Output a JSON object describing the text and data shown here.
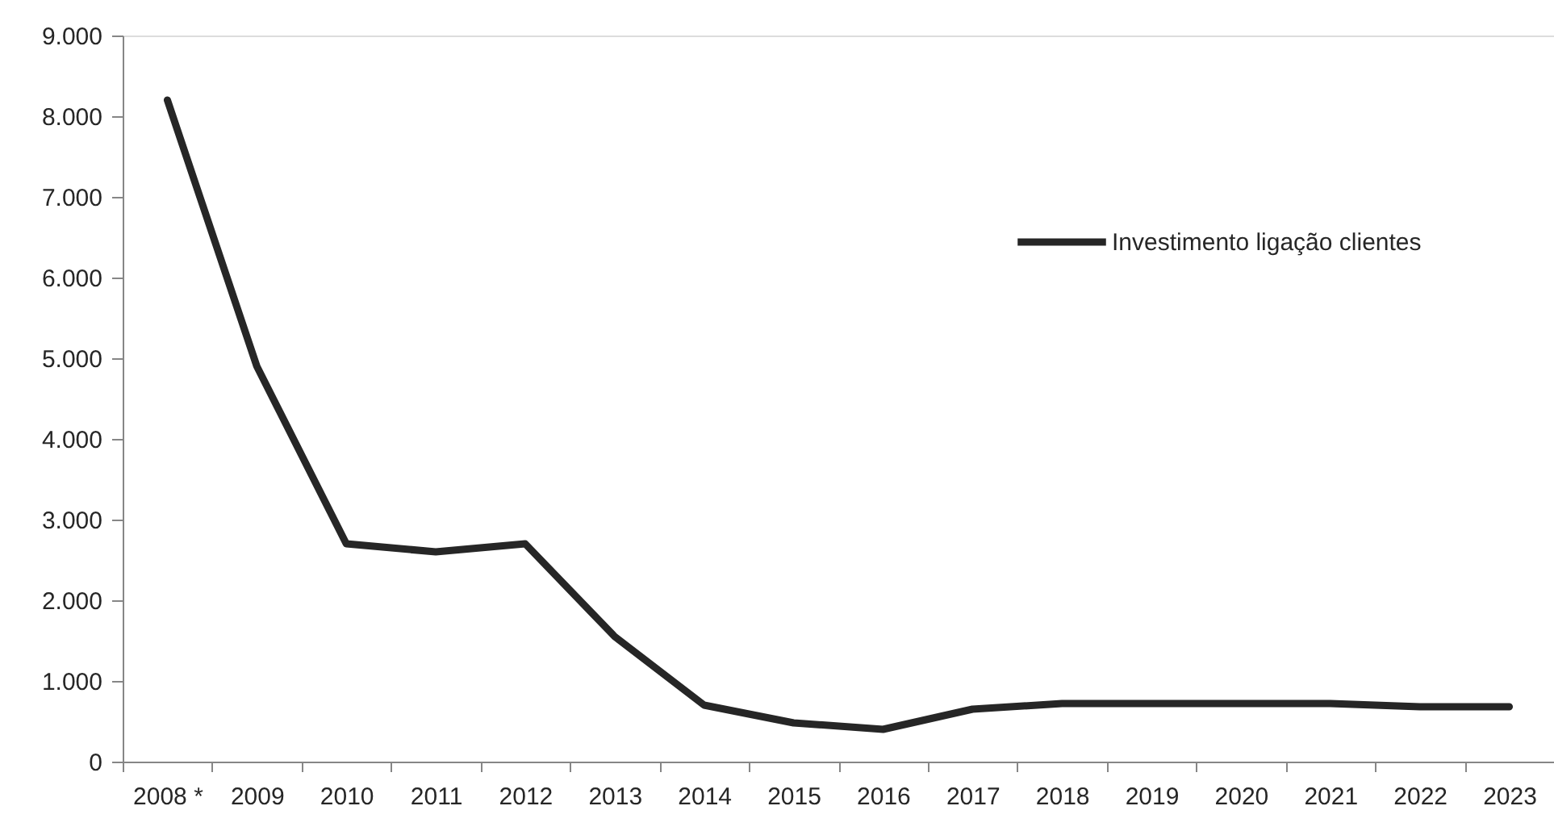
{
  "chart_data": {
    "type": "line",
    "categories": [
      "2008 *",
      "2009",
      "2010",
      "2011",
      "2012",
      "2013",
      "2014",
      "2015",
      "2016",
      "2017",
      "2018",
      "2019",
      "2020",
      "2021",
      "2022",
      "2023"
    ],
    "series": [
      {
        "name": "Investimento ligação clientes",
        "color": "#262626",
        "values": [
          8200,
          4900,
          2700,
          2600,
          2700,
          1550,
          700,
          480,
          400,
          650,
          720,
          720,
          720,
          720,
          680,
          680
        ]
      }
    ],
    "ylim": [
      0,
      9000
    ],
    "yticks": [
      0,
      {
        "value": 1000,
        "label": "1.000"
      },
      {
        "value": 2000,
        "label": "2.000"
      },
      {
        "value": 3000,
        "label": "3.000"
      },
      {
        "value": 4000,
        "label": "4.000"
      },
      {
        "value": 5000,
        "label": "5.000"
      },
      {
        "value": 6000,
        "label": "6.000"
      },
      {
        "value": 7000,
        "label": "7.000"
      },
      {
        "value": 8000,
        "label": "8.000"
      },
      {
        "value": 9000,
        "label": "9.000"
      }
    ],
    "legend": "top right",
    "grid": false,
    "line_style": "solid"
  }
}
